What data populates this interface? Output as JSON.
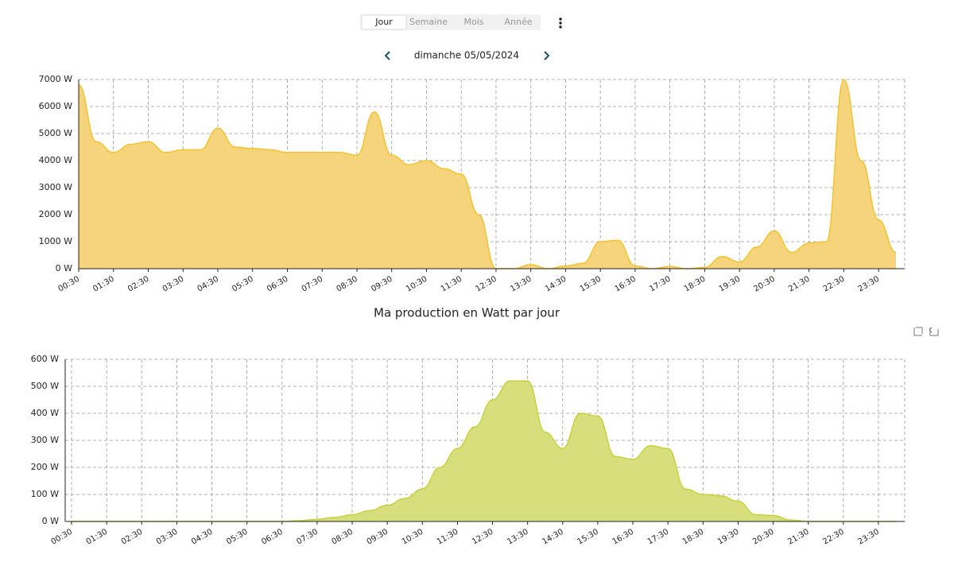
{
  "tabs": [
    "Jour",
    "Semaine",
    "Mois",
    "Année"
  ],
  "date": "dimanche 05/05/2024",
  "chart_data": [
    {
      "type": "area",
      "categories": [
        "00:30",
        null,
        "01:30",
        null,
        "02:30",
        null,
        "03:30",
        null,
        "04:30",
        null,
        "05:30",
        null,
        "06:30",
        null,
        "07:30",
        null,
        "08:30",
        null,
        "09:30",
        null,
        "10:30",
        null,
        "11:30",
        null,
        "12:30",
        null,
        "13:30",
        null,
        "14:30",
        null,
        "15:30",
        null,
        "16:30",
        null,
        "17:30",
        null,
        "18:30",
        null,
        "19:30",
        null,
        "20:30",
        null,
        "21:30",
        null,
        "22:30",
        null,
        "23:30",
        null
      ],
      "series": [
        {
          "color": "#f2c230",
          "fill": "#f6d47c",
          "values": [
            6800,
            4700,
            4300,
            4600,
            4700,
            4300,
            4400,
            4400,
            5200,
            4500,
            4450,
            4400,
            4300,
            4300,
            4300,
            4300,
            4200,
            5800,
            4200,
            3850,
            4000,
            3700,
            3500,
            2000,
            0,
            0,
            150,
            0,
            100,
            200,
            1000,
            1050,
            100,
            0,
            80,
            0,
            50,
            450,
            250,
            800,
            1400,
            600,
            950,
            1000,
            7000,
            4000,
            1800,
            600
          ]
        }
      ],
      "ylim": [
        0,
        7000
      ],
      "yticks": [
        {
          "value": 0,
          "label": "0 W"
        },
        {
          "value": 1000,
          "label": "1000 W"
        },
        {
          "value": 2000,
          "label": "2000 W"
        },
        {
          "value": 3000,
          "label": "3000 W"
        },
        {
          "value": 4000,
          "label": "4000 W"
        },
        {
          "value": 5000,
          "label": "5000 W"
        },
        {
          "value": 6000,
          "label": "6000 W"
        },
        {
          "value": 7000,
          "label": "7000 W"
        }
      ],
      "grid": true
    },
    {
      "type": "area",
      "title": "Ma production en Watt par jour",
      "categories": [
        "00:30",
        null,
        "01:30",
        null,
        "02:30",
        null,
        "03:30",
        null,
        "04:30",
        null,
        "05:30",
        null,
        "06:30",
        null,
        "07:30",
        null,
        "08:30",
        null,
        "09:30",
        null,
        "10:30",
        null,
        "11:30",
        null,
        "12:30",
        null,
        "13:30",
        null,
        "14:30",
        null,
        "15:30",
        null,
        "16:30",
        null,
        "17:30",
        null,
        "18:30",
        null,
        "19:30",
        null,
        "20:30",
        null,
        "21:30",
        null,
        "22:30",
        null,
        "23:30",
        null
      ],
      "series": [
        {
          "color": "#c5d13c",
          "fill": "#d6df7b",
          "values": [
            0,
            0,
            0,
            0,
            0,
            0,
            0,
            0,
            0,
            0,
            0,
            0,
            0,
            3,
            8,
            15,
            25,
            40,
            60,
            85,
            120,
            200,
            270,
            350,
            450,
            520,
            520,
            330,
            270,
            400,
            390,
            240,
            230,
            280,
            270,
            120,
            100,
            95,
            75,
            25,
            22,
            5,
            0,
            0,
            0,
            0,
            0,
            0
          ]
        }
      ],
      "ylim": [
        0,
        600
      ],
      "yticks": [
        {
          "value": 0,
          "label": "0 W"
        },
        {
          "value": 100,
          "label": "100 W"
        },
        {
          "value": 200,
          "label": "200 W"
        },
        {
          "value": 300,
          "label": "300 W"
        },
        {
          "value": 400,
          "label": "400 W"
        },
        {
          "value": 500,
          "label": "500 W"
        },
        {
          "value": 600,
          "label": "600 W"
        }
      ],
      "grid": true
    }
  ]
}
